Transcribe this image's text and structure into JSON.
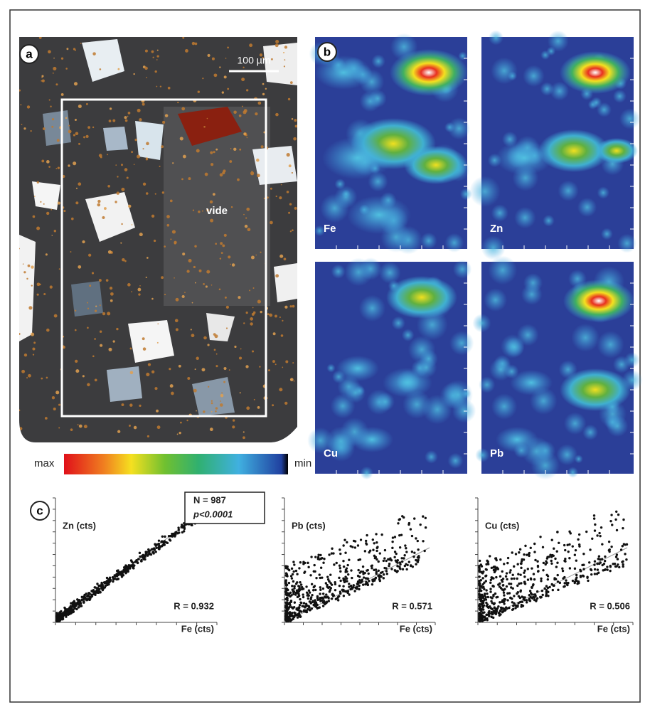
{
  "panels": {
    "a": {
      "label": "a",
      "scale_bar": "100 µm",
      "annotation": "vide"
    },
    "b": {
      "label": "b",
      "maps": [
        "Fe",
        "Zn",
        "Cu",
        "Pb"
      ]
    },
    "c": {
      "label": "c",
      "stats": {
        "n": "N = 987",
        "p": "p<0.0001"
      },
      "plots": [
        {
          "y_label": "Zn (cts)",
          "x_label": "Fe (cts)",
          "r": "R = 0.932"
        },
        {
          "y_label": "Pb (cts)",
          "x_label": "Fe (cts)",
          "r": "R = 0.571"
        },
        {
          "y_label": "Cu (cts)",
          "x_label": "Fe (cts)",
          "r": "R = 0.506"
        }
      ]
    }
  },
  "colorbar": {
    "max": "max",
    "min": "min"
  }
}
